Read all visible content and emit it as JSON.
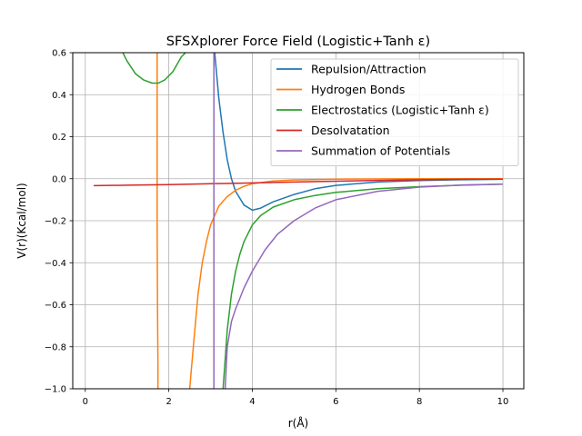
{
  "chart_data": {
    "type": "line",
    "title": "SFSXplorer Force Field (Logistic+Tanh ε)",
    "xlabel": "r(Å)",
    "ylabel": "V(r)(Kcal/mol)",
    "xlim": [
      -0.3,
      10.5
    ],
    "ylim": [
      -1.0,
      0.6
    ],
    "xticks": [
      0,
      2,
      4,
      6,
      8,
      10
    ],
    "xtick_labels": [
      "0",
      "2",
      "4",
      "6",
      "8",
      "10"
    ],
    "yticks": [
      -1.0,
      -0.8,
      -0.6,
      -0.4,
      -0.2,
      0.0,
      0.2,
      0.4,
      0.6
    ],
    "ytick_labels": [
      "−1.0",
      "−0.8",
      "−0.6",
      "−0.4",
      "−0.2",
      "0.0",
      "0.2",
      "0.4",
      "0.6"
    ],
    "grid": true,
    "legend_position": "top-right",
    "series": [
      {
        "name": "Repulsion/Attraction",
        "color": "#1f77b4",
        "x": [
          3.1,
          3.2,
          3.3,
          3.4,
          3.5,
          3.6,
          3.8,
          4.0,
          4.2,
          4.5,
          5.0,
          5.5,
          6.0,
          7.0,
          8.0,
          9.0,
          10.0
        ],
        "y": [
          0.6,
          0.38,
          0.22,
          0.09,
          0.0,
          -0.06,
          -0.125,
          -0.15,
          -0.14,
          -0.11,
          -0.075,
          -0.048,
          -0.032,
          -0.016,
          -0.009,
          -0.005,
          -0.003
        ]
      },
      {
        "name": "Hydrogen Bonds",
        "color": "#ff7f0e",
        "x": [
          1.72,
          1.72,
          1.72,
          1.73,
          1.74,
          1.74
        ],
        "y": [
          0.6,
          0.2,
          -0.2,
          -0.6,
          -0.9,
          -1.0
        ],
        "x2": [
          2.5,
          2.6,
          2.7,
          2.8,
          2.9,
          3.0,
          3.2,
          3.4,
          3.6,
          3.8,
          4.0,
          4.5,
          5.0,
          6.0,
          7.0,
          8.0,
          10.0
        ],
        "y2": [
          -1.0,
          -0.77,
          -0.55,
          -0.4,
          -0.3,
          -0.22,
          -0.13,
          -0.085,
          -0.055,
          -0.036,
          -0.024,
          -0.011,
          -0.006,
          -0.002,
          -0.001,
          0.0,
          0.0
        ]
      },
      {
        "name": "Electrostatics (Logistic+Tanh ε)",
        "color": "#2ca02c",
        "x": [
          0.9,
          1.0,
          1.2,
          1.4,
          1.6,
          1.75,
          1.9,
          2.1,
          2.3,
          2.4
        ],
        "y": [
          0.6,
          0.56,
          0.5,
          0.47,
          0.455,
          0.455,
          0.47,
          0.51,
          0.58,
          0.6
        ],
        "x2": [
          3.3,
          3.4,
          3.5,
          3.6,
          3.7,
          3.8,
          4.0,
          4.2,
          4.5,
          5.0,
          5.5,
          6.0,
          7.0,
          8.0,
          9.0,
          10.0
        ],
        "y2": [
          -1.0,
          -0.72,
          -0.55,
          -0.44,
          -0.36,
          -0.3,
          -0.22,
          -0.175,
          -0.135,
          -0.1,
          -0.08,
          -0.065,
          -0.048,
          -0.038,
          -0.031,
          -0.026
        ]
      },
      {
        "name": "Desolvatation",
        "color": "#d62728",
        "x": [
          0.2,
          1.0,
          2.0,
          3.0,
          4.0,
          5.0,
          6.0,
          7.0,
          8.0,
          9.0,
          10.0
        ],
        "y": [
          -0.033,
          -0.031,
          -0.028,
          -0.024,
          -0.02,
          -0.016,
          -0.012,
          -0.008,
          -0.005,
          -0.003,
          -0.002
        ]
      },
      {
        "name": "Summation of Potentials",
        "color": "#9467bd",
        "x": [
          3.08,
          3.08,
          3.08,
          3.08
        ],
        "y": [
          0.6,
          0.0,
          -0.5,
          -1.0
        ],
        "x2": [
          3.35,
          3.4,
          3.5,
          3.6,
          3.7,
          3.8,
          4.0,
          4.3,
          4.6,
          5.0,
          5.5,
          6.0,
          7.0,
          8.0,
          9.0,
          10.0
        ],
        "y2": [
          -1.0,
          -0.8,
          -0.68,
          -0.62,
          -0.57,
          -0.52,
          -0.44,
          -0.34,
          -0.265,
          -0.2,
          -0.14,
          -0.1,
          -0.06,
          -0.04,
          -0.03,
          -0.026
        ]
      }
    ]
  }
}
